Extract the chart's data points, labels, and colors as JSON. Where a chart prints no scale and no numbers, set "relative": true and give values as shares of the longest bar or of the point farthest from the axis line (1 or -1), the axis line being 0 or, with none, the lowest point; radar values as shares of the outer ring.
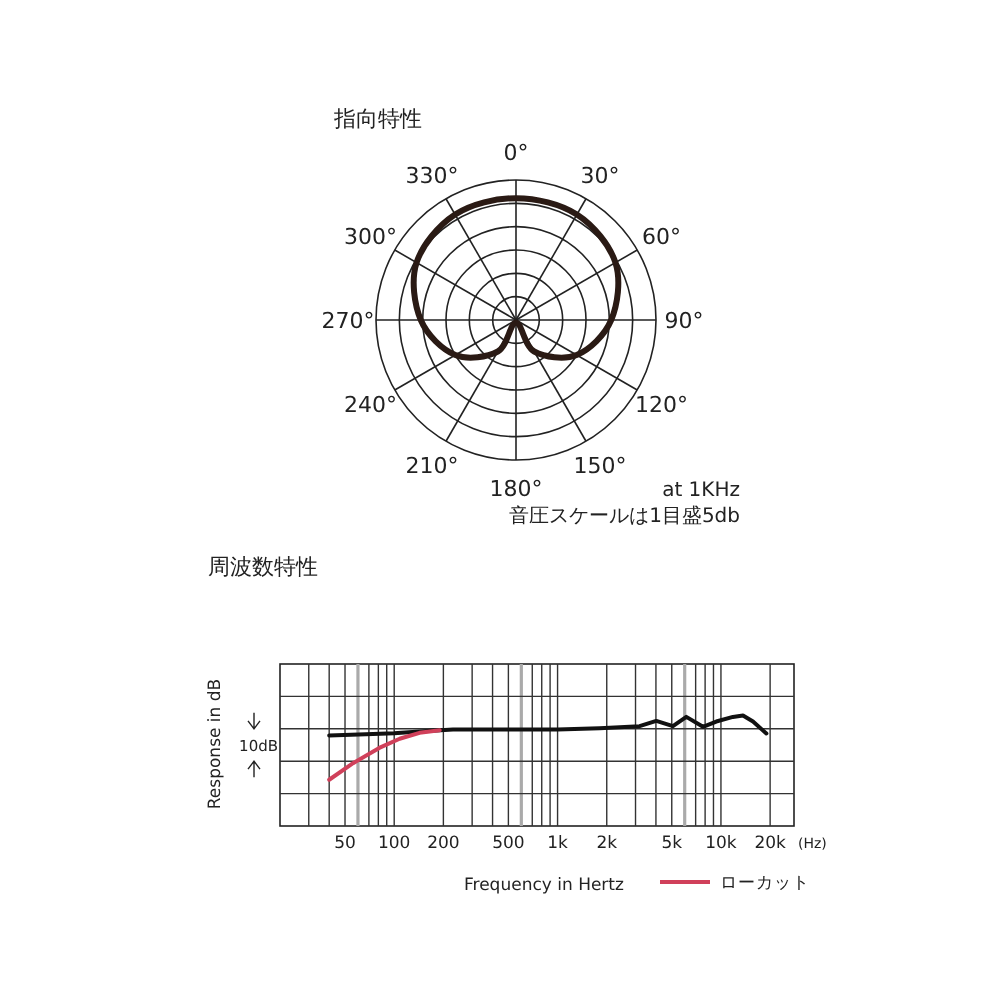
{
  "chart_data": [
    {
      "type": "radar",
      "title": "指向特性",
      "relative": true,
      "grid": true,
      "categories": [
        "0°",
        "30°",
        "60°",
        "90°",
        "120°",
        "150°",
        "180°",
        "210°",
        "240°",
        "270°",
        "300°",
        "330°"
      ],
      "series": [
        {
          "color": "#2a1a14",
          "values": [
            0.87,
            0.87,
            0.82,
            0.68,
            0.5,
            0.26,
            0.02,
            0.26,
            0.5,
            0.68,
            0.82,
            0.87
          ]
        }
      ],
      "annotations": [
        "at 1KHz",
        "音圧スケールは1目盛5db"
      ]
    },
    {
      "type": "line",
      "title": "周波数特性",
      "xlabel": "Frequency in Hertz",
      "ylabel": "Response in dB",
      "relative": true,
      "log": "x",
      "grid": true,
      "legend": "bottom right",
      "marker": "none",
      "line_style": "solid",
      "xlim": [
        20,
        28000
      ],
      "xticks": [
        50,
        100,
        200,
        500,
        {
          "value": 1000,
          "label": "1k"
        },
        {
          "value": 2000,
          "label": "2k"
        },
        {
          "value": 5000,
          "label": "5k"
        },
        {
          "value": 10000,
          "label": "10k"
        },
        {
          "value": 20000,
          "label": "20k"
        }
      ],
      "series": [
        {
          "color": "#111111",
          "x": [
            40,
            67,
            100,
            143,
            229,
            441,
            1000,
            1807,
            3177,
            4018,
            5082,
            6138,
            7763,
            9360,
            11840,
            13640,
            15710,
            18970
          ],
          "values": [
            0.82,
            0.83,
            0.84,
            0.856,
            0.874,
            0.874,
            0.874,
            0.886,
            0.904,
            0.952,
            0.904,
            0.988,
            0.898,
            0.946,
            0.988,
            1.0,
            0.946,
            0.838
          ]
        },
        {
          "name": "ローカット",
          "color": "#d0405a",
          "x": [
            40,
            56,
            81,
            108,
            143,
            190
          ],
          "values": [
            0.419,
            0.569,
            0.707,
            0.79,
            0.844,
            0.868
          ]
        }
      ],
      "annotations": [
        "10dB",
        "(Hz)"
      ]
    }
  ]
}
